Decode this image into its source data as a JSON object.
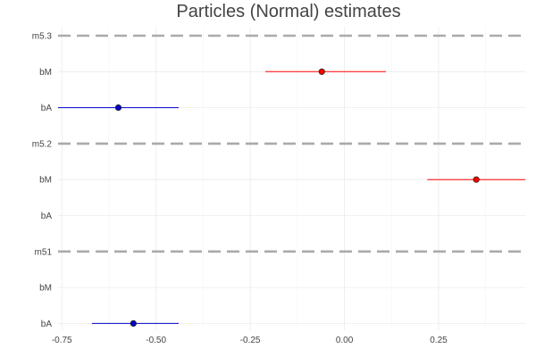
{
  "chart_data": {
    "type": "forest",
    "title": "Particles (Normal) estimates",
    "xlabel": "",
    "ylabel": "",
    "xlim": [
      -0.76,
      0.48
    ],
    "x_ticks": [
      -0.75,
      -0.5,
      -0.25,
      0.0,
      0.25
    ],
    "x_tick_labels": [
      "-0.75",
      "-0.50",
      "-0.25",
      "0.00",
      "0.25"
    ],
    "grid": true,
    "rows": [
      {
        "label": "m5.3",
        "kind": "model"
      },
      {
        "label": "bM",
        "kind": "estimate",
        "mean": -0.06,
        "lower": -0.21,
        "upper": 0.11,
        "color": "#ff0000"
      },
      {
        "label": "bA",
        "kind": "estimate",
        "mean": -0.6,
        "lower": -0.76,
        "upper": -0.44,
        "color": "#0000cc"
      },
      {
        "label": "m5.2",
        "kind": "model"
      },
      {
        "label": "bM",
        "kind": "estimate",
        "mean": 0.35,
        "lower": 0.22,
        "upper": 0.48,
        "color": "#ff0000"
      },
      {
        "label": "bA",
        "kind": "estimate",
        "mean": null,
        "lower": null,
        "upper": null,
        "color": "#0000cc"
      },
      {
        "label": "m51",
        "kind": "model"
      },
      {
        "label": "bM",
        "kind": "estimate",
        "mean": null,
        "lower": null,
        "upper": null,
        "color": "#ff0000"
      },
      {
        "label": "bA",
        "kind": "estimate",
        "mean": -0.56,
        "lower": -0.67,
        "upper": -0.44,
        "color": "#0000cc"
      }
    ],
    "colors": {
      "bM": "#ff0000",
      "bA": "#0000cc",
      "model_line": "#aaaaaa",
      "grid": "#ebebeb"
    }
  }
}
